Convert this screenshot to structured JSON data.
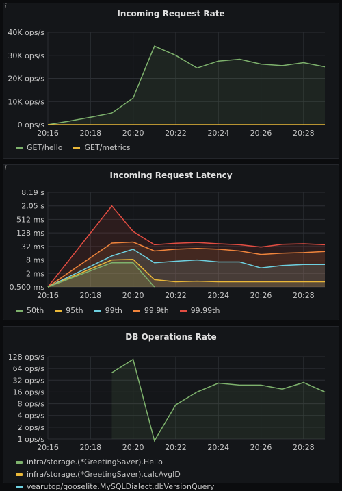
{
  "colors": {
    "green": "#7eb26d",
    "yellow": "#eab839",
    "blue": "#6ed0e0",
    "orange": "#ef843c",
    "red": "#e24d42",
    "white": "#d8d9da"
  },
  "panels": [
    {
      "title": "Incoming Request Rate",
      "icon": "info-icon"
    },
    {
      "title": "Incoming Request Latency",
      "icon": "info-icon"
    },
    {
      "title": "DB Operations Rate",
      "icon": "info-icon"
    }
  ],
  "chart_data": [
    {
      "type": "area",
      "title": "Incoming Request Rate",
      "x_ticks": [
        "20:16",
        "20:18",
        "20:20",
        "20:22",
        "20:24",
        "20:26",
        "20:28"
      ],
      "x_range": [
        "20:16",
        "20:29"
      ],
      "y_ticks": [
        "0 ops/s",
        "10K ops/s",
        "20K ops/s",
        "30K ops/s",
        "40K ops/s"
      ],
      "ylim": [
        0,
        40000
      ],
      "y_scale": "linear",
      "grid": true,
      "legend_position": "bottom-left",
      "series": [
        {
          "name": "GET/hello",
          "color": "#7eb26d",
          "x": [
            "20:16",
            "20:17",
            "20:18",
            "20:19",
            "20:20",
            "20:21",
            "20:22",
            "20:23",
            "20:24",
            "20:25",
            "20:26",
            "20:27",
            "20:28",
            "20:29"
          ],
          "values": [
            0,
            1500,
            3200,
            5000,
            11500,
            34000,
            30000,
            24500,
            27500,
            28300,
            26200,
            25500,
            26800,
            25000
          ],
          "fill": true
        },
        {
          "name": "GET/metrics",
          "color": "#eab839",
          "x": [
            "20:16",
            "20:29"
          ],
          "values": [
            0,
            0
          ],
          "fill": false
        }
      ]
    },
    {
      "type": "area",
      "title": "Incoming Request Latency",
      "x_ticks": [
        "20:16",
        "20:18",
        "20:20",
        "20:22",
        "20:24",
        "20:26",
        "20:28"
      ],
      "x_range": [
        "20:16",
        "20:29"
      ],
      "y_ticks": [
        "0.500 ms",
        "2 ms",
        "8 ms",
        "32 ms",
        "128 ms",
        "512 ms",
        "2.05 s",
        "8.19 s"
      ],
      "y_tick_values_ms": [
        0.5,
        2,
        8,
        32,
        128,
        512,
        2048,
        8192
      ],
      "y_scale": "log",
      "grid": true,
      "legend_position": "bottom-left",
      "series": [
        {
          "name": "50th",
          "color": "#7eb26d",
          "x": [
            "20:16",
            "20:19",
            "20:20",
            "20:21"
          ],
          "values": [
            0.5,
            6,
            6,
            0.5
          ]
        },
        {
          "name": "95th",
          "color": "#eab839",
          "x": [
            "20:16",
            "20:19",
            "20:20",
            "20:21",
            "20:22",
            "20:23",
            "20:24",
            "20:25",
            "20:26",
            "20:27",
            "20:28",
            "20:29"
          ],
          "values": [
            0.5,
            8,
            8.5,
            1.05,
            0.85,
            0.9,
            0.85,
            0.85,
            0.85,
            0.85,
            0.85,
            0.85
          ]
        },
        {
          "name": "99th",
          "color": "#6ed0e0",
          "x": [
            "20:16",
            "20:19",
            "20:20",
            "20:21",
            "20:22",
            "20:23",
            "20:24",
            "20:25",
            "20:26",
            "20:27",
            "20:28",
            "20:29"
          ],
          "values": [
            0.5,
            12,
            24,
            6,
            7,
            8,
            6.5,
            6.5,
            3.5,
            4.5,
            5,
            5
          ]
        },
        {
          "name": "99.9th",
          "color": "#ef843c",
          "x": [
            "20:16",
            "20:19",
            "20:20",
            "20:21",
            "20:22",
            "20:23",
            "20:24",
            "20:25",
            "20:26",
            "20:27",
            "20:28",
            "20:29"
          ],
          "values": [
            0.5,
            45,
            50,
            20,
            24,
            26,
            24,
            20,
            14,
            16,
            17,
            19
          ]
        },
        {
          "name": "99.99th",
          "color": "#e24d42",
          "x": [
            "20:16",
            "20:19",
            "20:20",
            "20:21",
            "20:22",
            "20:23",
            "20:24",
            "20:25",
            "20:26",
            "20:27",
            "20:28",
            "20:29"
          ],
          "values": [
            0.5,
            2048,
            150,
            38,
            44,
            48,
            42,
            38,
            30,
            40,
            42,
            38
          ]
        }
      ]
    },
    {
      "type": "area",
      "title": "DB Operations Rate",
      "x_ticks": [
        "20:16",
        "20:18",
        "20:20",
        "20:22",
        "20:24",
        "20:26",
        "20:28"
      ],
      "x_range": [
        "20:16",
        "20:29"
      ],
      "y_ticks": [
        "1 ops/s",
        "2 ops/s",
        "4 ops/s",
        "8 ops/s",
        "16 ops/s",
        "32 ops/s",
        "64 ops/s",
        "128 ops/s"
      ],
      "y_tick_values": [
        1,
        2,
        4,
        8,
        16,
        32,
        64,
        128
      ],
      "y_scale": "log",
      "grid": true,
      "legend_position": "bottom-left",
      "series": [
        {
          "name": "infra/storage.(*GreetingSaver).Hello",
          "color": "#7eb26d",
          "x": [
            "20:19",
            "20:20",
            "20:21",
            "20:22",
            "20:23",
            "20:24",
            "20:25",
            "20:26",
            "20:27",
            "20:28",
            "20:29"
          ],
          "values": [
            50,
            110,
            0.9,
            7.5,
            16,
            27,
            24,
            24,
            19,
            28,
            16
          ],
          "fill": true
        },
        {
          "name": "infra/storage.(*GreetingSaver).calcAvgID",
          "color": "#eab839",
          "x": [],
          "values": []
        },
        {
          "name": "vearutop/gooselite.MySQLDialect.dbVersionQuery",
          "color": "#6ed0e0",
          "x": [],
          "values": []
        }
      ]
    }
  ]
}
